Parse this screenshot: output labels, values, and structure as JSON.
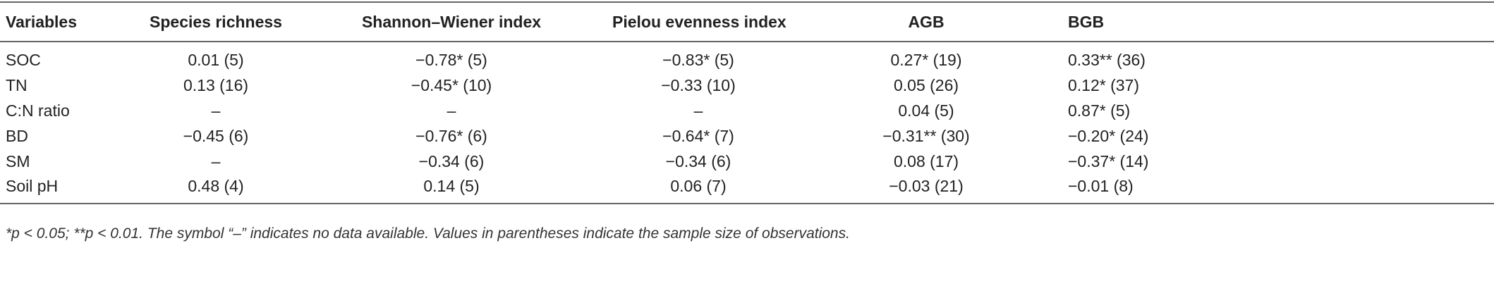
{
  "table": {
    "columns": [
      "Variables",
      "Species richness",
      "Shannon–Wiener index",
      "Pielou evenness index",
      "AGB",
      "BGB"
    ],
    "rows": [
      [
        "SOC",
        "0.01 (5)",
        "−0.78* (5)",
        "−0.83* (5)",
        "0.27* (19)",
        "0.33** (36)"
      ],
      [
        "TN",
        "0.13 (16)",
        "−0.45* (10)",
        "−0.33 (10)",
        "0.05 (26)",
        "0.12* (37)"
      ],
      [
        "C:N ratio",
        "–",
        "–",
        "–",
        "0.04 (5)",
        "0.87* (5)"
      ],
      [
        "BD",
        "−0.45 (6)",
        "−0.76* (6)",
        "−0.64* (7)",
        "−0.31** (30)",
        "−0.20* (24)"
      ],
      [
        "SM",
        "–",
        "−0.34 (6)",
        "−0.34 (6)",
        "0.08 (17)",
        "−0.37* (14)"
      ],
      [
        "Soil pH",
        "0.48 (4)",
        "0.14 (5)",
        "0.06 (7)",
        "−0.03 (21)",
        "−0.01 (8)"
      ]
    ]
  },
  "footnote": "*p < 0.05; **p < 0.01. The symbol “–” indicates no data available. Values in parentheses indicate the sample size of observations."
}
